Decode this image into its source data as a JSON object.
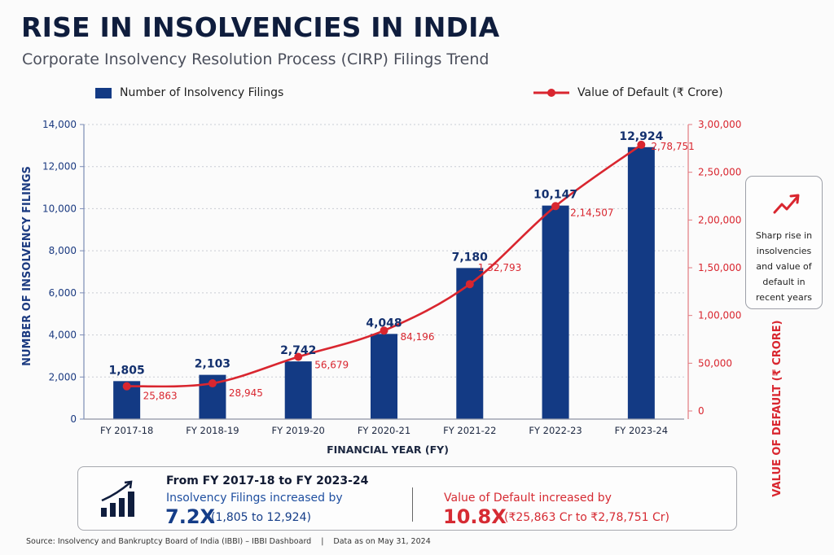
{
  "header": {
    "title": "RISE IN INSOLVENCIES IN INDIA",
    "subtitle": "Corporate Insolvency Resolution Process (CIRP) Filings Trend"
  },
  "colors": {
    "bar": "#133a84",
    "line": "#d9262f",
    "left_axis_text": "#1b3a80",
    "right_axis_text": "#d9262f",
    "title": "#0f1d3d"
  },
  "chart_data": {
    "type": "bar+line",
    "title": "RISE IN INSOLVENCIES IN INDIA",
    "subtitle": "Corporate Insolvency Resolution Process (CIRP) Filings Trend",
    "categories": [
      "FY 2017-18",
      "FY 2018-19",
      "FY 2019-20",
      "FY 2020-21",
      "FY 2021-22",
      "FY 2022-23",
      "FY 2023-24"
    ],
    "series": [
      {
        "name": "Number of Insolvency Filings",
        "type": "bar",
        "axis": "left",
        "values": [
          1805,
          2103,
          2742,
          4048,
          7180,
          10147,
          12924
        ],
        "labels": [
          "1,805",
          "2,103",
          "2,742",
          "4,048",
          "7,180",
          "10,147",
          "12,924"
        ]
      },
      {
        "name": "Value of Default (₹ Crore)",
        "type": "line",
        "axis": "right",
        "values": [
          25863,
          28945,
          56679,
          84196,
          132793,
          214507,
          278751
        ],
        "labels": [
          "25,863",
          "28,945",
          "56,679",
          "84,196",
          "1,32,793",
          "2,14,507",
          "2,78,751"
        ]
      }
    ],
    "xlabel": "FINANCIAL YEAR (FY)",
    "ylabel_left": "NUMBER OF INSOLVENCY FILINGS",
    "ylabel_right": "VALUE OF DEFAULT (₹ CRORE)",
    "ylim_left": [
      0,
      14000
    ],
    "ylim_right": [
      0,
      300000
    ],
    "yticks_left": [
      0,
      2000,
      4000,
      6000,
      8000,
      10000,
      12000,
      14000
    ],
    "ytick_labels_left": [
      "0",
      "2,000",
      "4,000",
      "6,000",
      "8,000",
      "10,000",
      "12,000",
      "14,000"
    ],
    "yticks_right": [
      0,
      50000,
      100000,
      150000,
      200000,
      250000,
      300000
    ],
    "ytick_labels_right": [
      "0",
      "50,000",
      "1,00,000",
      "1,50,000",
      "2,00,000",
      "2,50,000",
      "3,00,000"
    ],
    "grid": true,
    "legend": "top"
  },
  "legend": {
    "bar_label": "Number of Insolvency Filings",
    "line_label": "Value of Default (₹ Crore)"
  },
  "callout": {
    "icon": "trend-up-arrow-icon",
    "text": "Sharp rise in insolvencies and value of default in recent years"
  },
  "summary": {
    "icon": "bar-chart-growth-icon",
    "range": "From FY 2017-18 to FY 2023-24",
    "filings_label": "Insolvency Filings increased by",
    "filings_multiplier": "7.2X",
    "filings_detail": "(1,805 to 12,924)",
    "default_label": "Value of Default increased by",
    "default_multiplier": "10.8X",
    "default_detail": "(₹25,863 Cr to ₹2,78,751 Cr)"
  },
  "footer": {
    "source": "Source: Insolvency and Bankruptcy Board of India (IBBI) – IBBI Dashboard",
    "separator": "|",
    "date": "Data as on May 31, 2024"
  }
}
